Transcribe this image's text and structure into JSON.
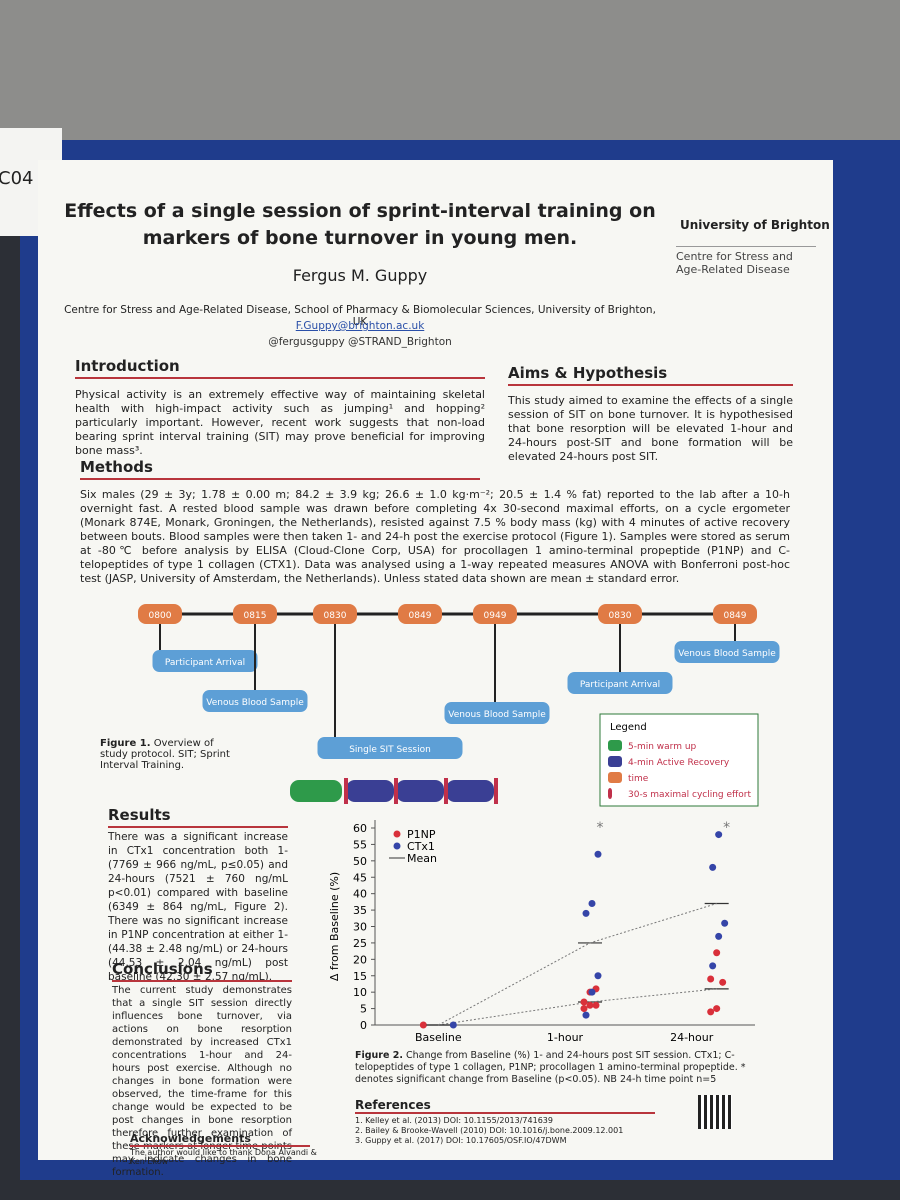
{
  "header": {
    "label": "C04",
    "title": "Effects of a single session of sprint-interval training on markers of bone turnover in young men.",
    "author": "Fergus M. Guppy",
    "affiliation": "Centre for Stress and Age-Related Disease, School of Pharmacy & Biomolecular Sciences, University of Brighton, UK",
    "email": "F.Guppy@brighton.ac.uk",
    "twitter": "@fergusguppy @STRAND_Brighton",
    "logo": "University of Brighton",
    "logo_sub": "Centre for Stress and Age-Related Disease"
  },
  "introduction": {
    "heading": "Introduction",
    "text": "Physical activity is an extremely effective way of maintaining skeletal health with high-impact activity such as jumping¹ and hopping² particularly important. However, recent work suggests that non-load bearing sprint interval training (SIT) may prove beneficial for improving bone mass³."
  },
  "aims": {
    "heading": "Aims & Hypothesis",
    "text": "This study aimed to examine the effects of a single session of SIT on bone turnover. It is hypothesised that bone resorption will be elevated 1-hour and 24-hours post-SIT and bone formation will be elevated 24-hours post SIT."
  },
  "methods": {
    "heading": "Methods",
    "text": "Six males (29 ± 3y; 1.78 ± 0.00 m; 84.2 ± 3.9 kg; 26.6 ± 1.0 kg·m⁻²; 20.5 ± 1.4 % fat) reported to the lab after a 10-h overnight fast. A rested blood sample was drawn before completing 4x 30-second maximal efforts, on a cycle ergometer (Monark 874E, Monark, Groningen, the Netherlands), resisted against 7.5 % body mass (kg) with 4 minutes of active recovery between bouts. Blood samples were then taken 1- and 24-h post the exercise protocol (Figure 1). Samples were stored as serum at -80℃ before analysis by ELISA (Cloud-Clone Corp, USA) for procollagen 1 amino-terminal propeptide (P1NP) and C-telopeptides of type 1 collagen (CTX1). Data was analysed using a 1-way repeated measures ANOVA with Bonferroni post-hoc test (JASP, University of Amsterdam, the Netherlands). Unless stated data shown are mean ± standard error."
  },
  "figure1": {
    "times": [
      "0800",
      "0815",
      "0830",
      "0849",
      "0949",
      "0830",
      "0849"
    ],
    "events": [
      "Participant Arrival",
      "Venous Blood Sample",
      "Single SIT Session",
      "Venous Blood Sample",
      "Participant Arrival",
      "Venous Blood Sample"
    ],
    "caption_label": "Figure 1.",
    "caption": "Overview of study protocol. SIT; Sprint Interval Training.",
    "legend": {
      "title": "Legend",
      "items": [
        {
          "label": "5-min warm up",
          "color": "#2e9a4a"
        },
        {
          "label": "4-min Active Recovery",
          "color": "#3a3f94"
        },
        {
          "label": "time",
          "color": "#e07b45"
        },
        {
          "label": "30-s maximal cycling effort",
          "color": "#c0304a"
        }
      ]
    }
  },
  "results": {
    "heading": "Results",
    "text": "There was a significant increase in CTx1 concentration both 1- (7769 ± 966 ng/mL, p≤0.05) and 24-hours (7521 ± 760 ng/mL p<0.01) compared with baseline (6349 ± 864 ng/mL, Figure 2). There was no significant increase in P1NP concentration at either 1- (44.38 ± 2.48 ng/mL) or 24-hours (44.53 ± 2.04 ng/mL) post baseline (42.30 ± 2.57 ng/mL)."
  },
  "conclusions": {
    "heading": "Conclusions",
    "text": "The current study demonstrates that a single SIT session directly influences bone turnover, via actions on bone resorption demonstrated by increased CTx1 concentrations 1-hour and 24-hours post exercise. Although no changes in bone formation were observed, the time-frame for this change would be expected to be post changes in bone resorption therefore further examination of these markers at longer time points may indicate changes in bone formation."
  },
  "figure2": {
    "type": "scatter",
    "ylabel": "Δ from Baseline (%)",
    "categories": [
      "Baseline",
      "1-hour",
      "24-hour"
    ],
    "ylim": [
      0,
      60
    ],
    "yticks": [
      0,
      5,
      10,
      15,
      20,
      25,
      30,
      35,
      40,
      45,
      50,
      55,
      60
    ],
    "series": [
      {
        "name": "P1NP",
        "color": "#d9303a",
        "values": [
          [
            0
          ],
          [
            5,
            6,
            6,
            7,
            10,
            11
          ],
          [
            4,
            5,
            13,
            14,
            22
          ]
        ],
        "mean": [
          0,
          7,
          11
        ]
      },
      {
        "name": "CTx1",
        "color": "#3545a8",
        "values": [
          [
            0
          ],
          [
            3,
            10,
            15,
            34,
            37,
            52
          ],
          [
            18,
            27,
            31,
            48,
            58
          ]
        ],
        "mean": [
          0,
          25,
          37
        ]
      }
    ],
    "mean_label": "Mean",
    "significance": [
      "*",
      "*"
    ],
    "caption_label": "Figure 2.",
    "caption": "Change from Baseline (%) 1- and 24-hours post SIT session. CTx1; C-telopeptides of type 1 collagen, P1NP; procollagen 1 amino-terminal propeptide. * denotes significant change from Baseline (p<0.05). NB 24-h time point n=5"
  },
  "references": {
    "heading": "References",
    "items": [
      "1. Kelley et al. (2013) DOI: 10.1155/2013/741639",
      "2. Bailey & Brooke-Wavell (2010) DOI: 10.1016/j.bone.2009.12.001",
      "3. Guppy et al. (2017) DOI: 10.17605/OSF.IO/47DWM"
    ]
  },
  "acknowledgements": {
    "heading": "Acknowledgements",
    "text": "The author would like to thank Dona Alvandi & Ken Ekow"
  }
}
